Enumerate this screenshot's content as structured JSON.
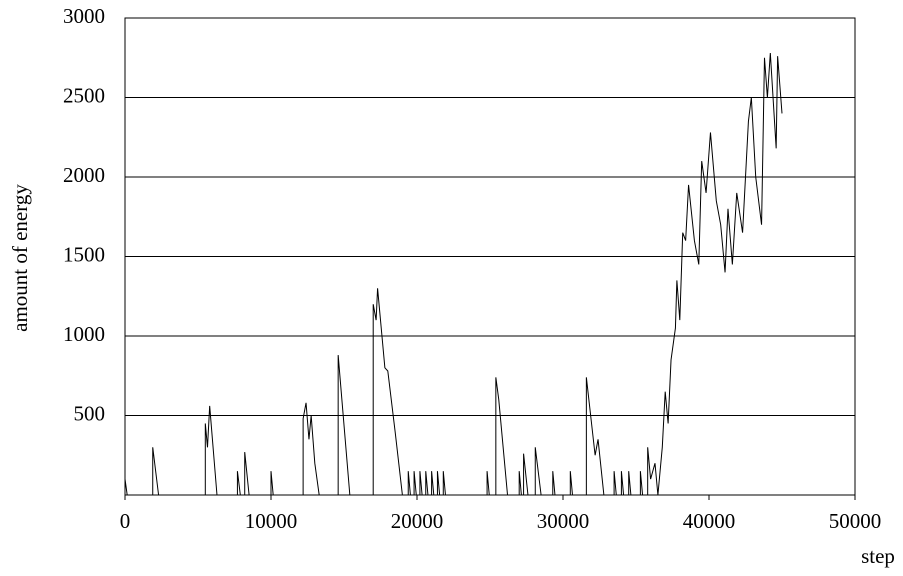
{
  "chart_data": {
    "type": "line",
    "y_label": "amount of energy",
    "x_label": "step",
    "color": "#000000",
    "x": [
      0,
      150,
      1900,
      1900,
      2300,
      5500,
      5500,
      5650,
      5800,
      6300,
      7700,
      7700,
      7900,
      8200,
      8200,
      8500,
      10000,
      10000,
      10150,
      12200,
      12200,
      12400,
      12600,
      12750,
      13000,
      13300,
      14600,
      14600,
      15400,
      17000,
      17000,
      17200,
      17300,
      17600,
      17800,
      18000,
      18500,
      19000,
      19400,
      19400,
      19550,
      19800,
      19800,
      19950,
      20200,
      20200,
      20350,
      20600,
      20600,
      20750,
      21000,
      21000,
      21150,
      21400,
      21400,
      21550,
      21800,
      21800,
      21950,
      24800,
      24800,
      24950,
      25400,
      25400,
      25600,
      26200,
      27000,
      27000,
      27150,
      27300,
      27300,
      27600,
      28100,
      28100,
      28500,
      29300,
      29300,
      29450,
      30500,
      30500,
      30650,
      31600,
      31600,
      32200,
      32400,
      32800,
      33500,
      33500,
      33650,
      34000,
      34000,
      34150,
      34500,
      34500,
      34650,
      35300,
      35300,
      35450,
      35800,
      35800,
      36000,
      36300,
      36500,
      36800,
      37000,
      37200,
      37400,
      37700,
      37800,
      38000,
      38200,
      38400,
      38600,
      39000,
      39300,
      39500,
      39800,
      40100,
      40500,
      40800,
      41100,
      41300,
      41600,
      41900,
      42300,
      42700,
      42900,
      43200,
      43600,
      43800,
      44000,
      44200,
      44600,
      44700,
      45000
    ],
    "values": [
      100,
      0,
      0,
      300,
      0,
      0,
      450,
      300,
      560,
      0,
      0,
      150,
      0,
      0,
      270,
      0,
      0,
      150,
      0,
      0,
      480,
      580,
      350,
      500,
      200,
      0,
      0,
      880,
      0,
      0,
      1200,
      1100,
      1300,
      1000,
      800,
      780,
      400,
      0,
      0,
      150,
      0,
      0,
      150,
      0,
      0,
      150,
      0,
      0,
      150,
      0,
      0,
      150,
      0,
      0,
      150,
      0,
      0,
      150,
      0,
      0,
      150,
      0,
      0,
      740,
      600,
      0,
      0,
      150,
      0,
      0,
      260,
      0,
      0,
      300,
      0,
      0,
      150,
      0,
      0,
      150,
      0,
      0,
      740,
      250,
      350,
      0,
      0,
      150,
      0,
      0,
      150,
      0,
      0,
      150,
      0,
      0,
      150,
      0,
      0,
      300,
      100,
      200,
      0,
      300,
      650,
      450,
      850,
      1050,
      1350,
      1100,
      1650,
      1600,
      1950,
      1600,
      1450,
      2100,
      1900,
      2280,
      1850,
      1700,
      1400,
      1800,
      1450,
      1900,
      1650,
      2350,
      2500,
      2000,
      1700,
      2750,
      2500,
      2780,
      2180,
      2760,
      2400
    ],
    "xlim": [
      0,
      50000
    ],
    "ylim": [
      0,
      3000
    ],
    "xticks": [
      0,
      10000,
      20000,
      30000,
      40000,
      50000
    ],
    "yticks": [
      500,
      1000,
      1500,
      2000,
      2500,
      3000
    ],
    "grid": true
  }
}
